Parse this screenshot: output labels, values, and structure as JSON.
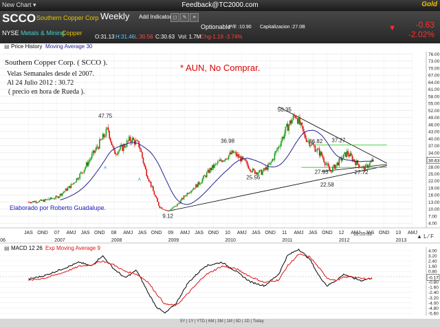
{
  "topbar": {
    "new_chart": "New Chart ▾",
    "feedback": "Feedback@TC2000.com",
    "gold": "Gold"
  },
  "header": {
    "symbol": "SCCO",
    "company": "Southern Copper Corp",
    "period": "Weekly",
    "add_indicator": "Add Indicator",
    "exchange": "NYSE",
    "sector": "Metals & Mining",
    "industry": "Copper",
    "optionable": "Optionable",
    "pe": "P/E :10.90",
    "cap": "Capitalizacion :27.0B",
    "open": "O:31.13",
    "high": "H:31.46",
    "low": "L:30.56",
    "close": "C:30.63",
    "vol": "Vol: 1.7M",
    "chg_line": "Chg-1.19  -3.74%",
    "chg": "-0.63",
    "chg_pct": "-2.02%"
  },
  "price_panel": {
    "legend_price": "Price History",
    "legend_ma": "Moving Average 30",
    "title_line1": "Southern Copper Corp.  ( SCCO ).",
    "title_line2": "Velas Semanales desde el 2007.",
    "title_line3": "Al 24 Julio 2012 : 30.72",
    "title_line4": "( precio en hora de Rueda ).",
    "warning": "* AUN, No Comprar.",
    "author": "Elaborado por Roberto Guadalupe.",
    "current_price_tag": "30.63",
    "time_stamp": "12:35:32",
    "ticker_a": "A"
  },
  "macd_panel": {
    "legend_macd": "MACD 12 26",
    "legend_exp": "Exp Moving Average 9",
    "value_tag": "-0.17"
  },
  "footer_controls": "5Y | 1Y | YTD | 6M | 3M | 1M | 5D | 1D | Today",
  "colors": {
    "bull": "#1a9e1a",
    "bear": "#e01010",
    "ma": "#202090",
    "macd": "#000000",
    "signal": "#e01010",
    "support": "#33cc33",
    "warn": "#e00000",
    "author": "#2020c0"
  },
  "chart_data": [
    {
      "type": "candlestick",
      "title": "Southern Copper Corp. ( SCCO ).",
      "x_tick_labels": [
        "JAS",
        "OND",
        "07",
        "AMJ",
        "JAS",
        "OND",
        "08",
        "AMJ",
        "JAS",
        "OND",
        "09",
        "AMJ",
        "JAS",
        "OND",
        "10",
        "AMJ",
        "JAS",
        "OND",
        "11",
        "AMJ",
        "JAS",
        "OND",
        "12",
        "AMJ",
        "JAS",
        "OND",
        "13",
        "AMJ"
      ],
      "year_labels": [
        "06",
        "2007",
        "2008",
        "2009",
        "2010",
        "2011",
        "2012",
        "2013"
      ],
      "y_ticks": [
        4,
        7,
        10,
        13,
        16,
        19,
        22,
        25,
        28,
        31,
        34,
        37,
        40,
        43,
        46,
        49,
        52,
        55,
        58,
        61,
        64,
        67,
        70,
        73,
        76
      ],
      "y_tick_labels": [
        "4.00",
        "7.00",
        "10.00",
        "13.00",
        "16.00",
        "19.00",
        "22.00",
        "25.00",
        "28.00",
        "31.00",
        "34.00",
        "37.00",
        "40.00",
        "43.00",
        "46.00",
        "49.00",
        "52.00",
        "55.00",
        "58.00",
        "61.00",
        "64.00",
        "67.00",
        "70.00",
        "73.00",
        "76.00"
      ],
      "ylim": [
        2,
        77
      ],
      "y_tags": [
        "30.63",
        "28.00"
      ],
      "price_series_x": [
        2006.5,
        2006.75,
        2007.0,
        2007.25,
        2007.45,
        2007.6,
        2007.75,
        2007.9,
        2008.0,
        2008.15,
        2008.3,
        2008.45,
        2008.55,
        2008.7,
        2008.8,
        2008.95,
        2009.1,
        2009.3,
        2009.5,
        2009.7,
        2009.9,
        2010.1,
        2010.3,
        2010.45,
        2010.6,
        2010.75,
        2010.9,
        2011.05,
        2011.2,
        2011.35,
        2011.5,
        2011.65,
        2011.8,
        2011.95,
        2012.1,
        2012.25,
        2012.4,
        2012.55
      ],
      "price_series_y": [
        13,
        13.5,
        15,
        20,
        26,
        32,
        38,
        44,
        34,
        36,
        40,
        37,
        27,
        17,
        11,
        9.12,
        11.5,
        17,
        21,
        27,
        31,
        34,
        30,
        26,
        25.56,
        29,
        36.98,
        45,
        50.35,
        41,
        37,
        33,
        26,
        30,
        34,
        30,
        27,
        30.63
      ],
      "annotations": [
        {
          "label": "47.75",
          "x": 2007.85,
          "y": 47.75
        },
        {
          "label": "9.12",
          "x": 2008.95,
          "y": 9.12
        },
        {
          "label": "36.98",
          "x": 2010.0,
          "y": 36.98
        },
        {
          "label": "25.56",
          "x": 2010.45,
          "y": 25.56
        },
        {
          "label": "50.35",
          "x": 2011.0,
          "y": 50.35
        },
        {
          "label": "36.82",
          "x": 2011.55,
          "y": 36.82
        },
        {
          "label": "37.27",
          "x": 2011.95,
          "y": 37.27
        },
        {
          "label": "27.93",
          "x": 2011.65,
          "y": 27.93
        },
        {
          "label": "22.58",
          "x": 2011.75,
          "y": 22.58
        },
        {
          "label": "27.72",
          "x": 2012.35,
          "y": 27.72
        }
      ],
      "trendlines": [
        {
          "kind": "long-support",
          "from": [
            2008.95,
            9.12
          ],
          "to": [
            2012.8,
            28.5
          ]
        },
        {
          "kind": "resistance",
          "from": [
            2010.9,
            53.5
          ],
          "to": [
            2012.8,
            29.5
          ]
        },
        {
          "kind": "horizontal-37.27",
          "from": [
            2011.55,
            37.27
          ],
          "to": [
            2012.8,
            37.27
          ]
        },
        {
          "kind": "horizontal-27.72",
          "from": [
            2011.3,
            27.72
          ],
          "to": [
            2012.8,
            27.72
          ]
        },
        {
          "kind": "rising-short",
          "from": [
            2011.65,
            26.0
          ],
          "to": [
            2012.8,
            29.0
          ]
        }
      ]
    },
    {
      "type": "line",
      "title": "",
      "series": [
        {
          "name": "MACD 12 26",
          "x": [
            2006.5,
            2006.8,
            2007.1,
            2007.4,
            2007.6,
            2007.8,
            2008.0,
            2008.2,
            2008.4,
            2008.6,
            2008.75,
            2008.9,
            2009.1,
            2009.3,
            2009.6,
            2009.9,
            2010.15,
            2010.4,
            2010.65,
            2010.9,
            2011.05,
            2011.25,
            2011.45,
            2011.6,
            2011.75,
            2011.9,
            2012.05,
            2012.2,
            2012.35,
            2012.55
          ],
          "y": [
            -0.4,
            0.2,
            1.2,
            2.2,
            1.6,
            3.2,
            1.2,
            -0.2,
            1.0,
            -2.4,
            -4.6,
            -5.6,
            -4.0,
            -1.0,
            1.6,
            2.2,
            0.8,
            -0.8,
            -1.4,
            0.4,
            3.2,
            4.2,
            2.6,
            0.2,
            -1.4,
            -0.6,
            0.4,
            -0.2,
            -0.6,
            -0.17
          ]
        },
        {
          "name": "Exp Moving Average 9",
          "x": [
            2006.5,
            2006.8,
            2007.1,
            2007.4,
            2007.6,
            2007.8,
            2008.0,
            2008.2,
            2008.4,
            2008.6,
            2008.75,
            2008.9,
            2009.1,
            2009.3,
            2009.6,
            2009.9,
            2010.15,
            2010.4,
            2010.65,
            2010.9,
            2011.05,
            2011.25,
            2011.45,
            2011.6,
            2011.75,
            2011.9,
            2012.05,
            2012.2,
            2012.35,
            2012.55
          ],
          "y": [
            -0.6,
            -0.2,
            0.6,
            1.6,
            1.8,
            2.4,
            1.8,
            0.8,
            0.4,
            -0.8,
            -2.6,
            -4.2,
            -4.4,
            -2.6,
            0.2,
            1.6,
            1.2,
            0.0,
            -0.9,
            -0.5,
            1.6,
            3.4,
            3.0,
            1.4,
            -0.2,
            -0.6,
            -0.1,
            0.0,
            -0.3,
            -0.25
          ]
        }
      ],
      "y_ticks": [
        -5.6,
        -4.8,
        -4.0,
        -3.2,
        -2.4,
        -1.6,
        -0.8,
        0.0,
        0.8,
        1.6,
        2.4,
        3.2,
        4.0
      ],
      "y_tick_labels": [
        "-5.60",
        "-4.80",
        "-4.00",
        "-3.20",
        "-2.40",
        "-1.60",
        "-0.80",
        "0.00",
        "0.80",
        "1.60",
        "2.40",
        "3.20",
        "4.00"
      ],
      "ylim": [
        -6,
        4.5
      ]
    }
  ]
}
